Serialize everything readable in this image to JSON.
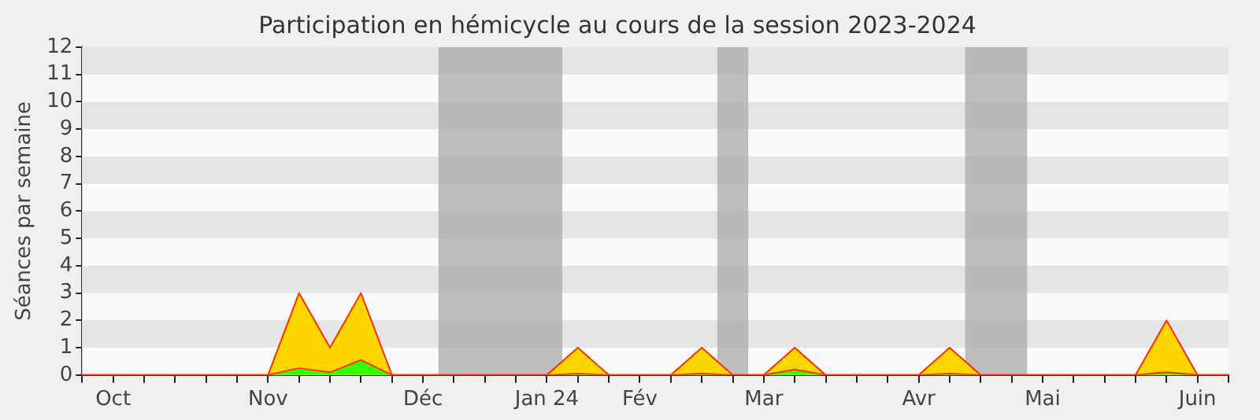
{
  "chart_data": {
    "type": "area",
    "title": "Participation en hémicycle au cours de la session 2023-2024",
    "ylabel": "Séances par semaine",
    "xlim": [
      "2023-10-02",
      "2024-06-17"
    ],
    "ylim": [
      0,
      12
    ],
    "yticks": [
      0,
      1,
      2,
      3,
      4,
      5,
      6,
      7,
      8,
      9,
      10,
      11,
      12
    ],
    "xticks": [
      {
        "value": "2023-10-02",
        "label": null
      },
      {
        "value": "2023-10-09",
        "label": "Oct"
      },
      {
        "value": "2023-10-16",
        "label": null
      },
      {
        "value": "2023-10-23",
        "label": null
      },
      {
        "value": "2023-10-30",
        "label": null
      },
      {
        "value": "2023-11-06",
        "label": null
      },
      {
        "value": "2023-11-13",
        "label": "Nov"
      },
      {
        "value": "2023-11-20",
        "label": null
      },
      {
        "value": "2023-11-27",
        "label": null
      },
      {
        "value": "2023-12-04",
        "label": null
      },
      {
        "value": "2023-12-11",
        "label": null
      },
      {
        "value": "2023-12-18",
        "label": "Déc"
      },
      {
        "value": "2023-12-25",
        "label": null
      },
      {
        "value": "2024-01-01",
        "label": null
      },
      {
        "value": "2024-01-08",
        "label": null
      },
      {
        "value": "2024-01-15",
        "label": "Jan 24"
      },
      {
        "value": "2024-01-22",
        "label": null
      },
      {
        "value": "2024-01-29",
        "label": null
      },
      {
        "value": "2024-02-05",
        "label": "Fév"
      },
      {
        "value": "2024-02-12",
        "label": null
      },
      {
        "value": "2024-02-19",
        "label": null
      },
      {
        "value": "2024-02-26",
        "label": null
      },
      {
        "value": "2024-03-04",
        "label": "Mar"
      },
      {
        "value": "2024-03-11",
        "label": null
      },
      {
        "value": "2024-03-18",
        "label": null
      },
      {
        "value": "2024-03-25",
        "label": null
      },
      {
        "value": "2024-04-01",
        "label": null
      },
      {
        "value": "2024-04-08",
        "label": "Avr"
      },
      {
        "value": "2024-04-15",
        "label": null
      },
      {
        "value": "2024-04-22",
        "label": null
      },
      {
        "value": "2024-04-29",
        "label": null
      },
      {
        "value": "2024-05-06",
        "label": "Mai"
      },
      {
        "value": "2024-05-13",
        "label": null
      },
      {
        "value": "2024-05-20",
        "label": null
      },
      {
        "value": "2024-05-27",
        "label": null
      },
      {
        "value": "2024-06-03",
        "label": null
      },
      {
        "value": "2024-06-10",
        "label": "Juin"
      },
      {
        "value": "2024-06-17",
        "label": null
      }
    ],
    "x": [
      "2023-10-02",
      "2023-10-09",
      "2023-10-16",
      "2023-10-23",
      "2023-10-30",
      "2023-11-06",
      "2023-11-13",
      "2023-11-20",
      "2023-11-27",
      "2023-12-04",
      "2023-12-11",
      "2023-12-18",
      "2023-12-25",
      "2024-01-01",
      "2024-01-08",
      "2024-01-15",
      "2024-01-22",
      "2024-01-29",
      "2024-02-05",
      "2024-02-12",
      "2024-02-19",
      "2024-02-26",
      "2024-03-04",
      "2024-03-11",
      "2024-03-18",
      "2024-03-25",
      "2024-04-01",
      "2024-04-08",
      "2024-04-15",
      "2024-04-22",
      "2024-04-29",
      "2024-05-06",
      "2024-05-13",
      "2024-05-20",
      "2024-05-27",
      "2024-06-03",
      "2024-06-10",
      "2024-06-17"
    ],
    "series": [
      {
        "color": "#ffd700",
        "values": [
          0,
          0,
          0,
          0,
          0,
          0,
          0,
          3,
          1,
          3,
          0,
          0,
          0,
          0,
          0,
          0,
          1,
          0,
          0,
          0,
          1,
          0,
          0,
          1,
          0,
          0,
          0,
          0,
          1,
          0,
          0,
          0,
          0,
          0,
          0,
          2,
          0,
          0
        ]
      },
      {
        "color": "#33ff00",
        "values": [
          0,
          0,
          0,
          0,
          0,
          0,
          0,
          0.25,
          0.1,
          0.55,
          0,
          0,
          0,
          0,
          0,
          0,
          0.05,
          0,
          0,
          0,
          0.05,
          0,
          0,
          0.2,
          0,
          0,
          0,
          0,
          0.05,
          0,
          0,
          0,
          0,
          0,
          0,
          0.1,
          0,
          0
        ]
      }
    ],
    "bands": [
      {
        "axis": "x",
        "from": "2023-12-21T12:00",
        "to": "2024-01-18T12:00",
        "color": "#aaaaaa"
      },
      {
        "axis": "x",
        "from": "2024-02-22T12:00",
        "to": "2024-02-29T12:00",
        "color": "#aaaaaa"
      },
      {
        "axis": "x",
        "from": "2024-04-18T12:00",
        "to": "2024-05-02T12:00",
        "color": "#aaaaaa"
      }
    ],
    "legend": false
  }
}
